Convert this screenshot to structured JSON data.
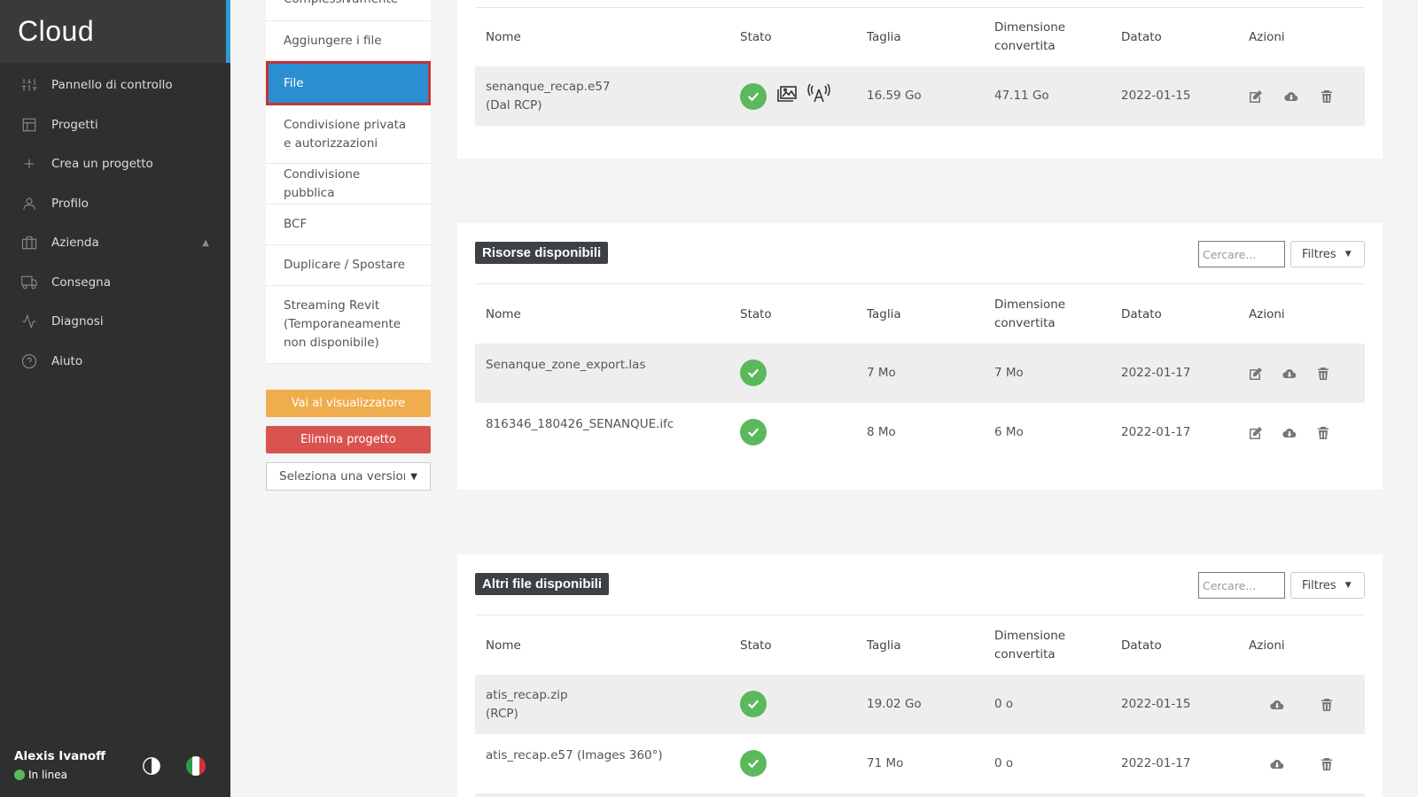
{
  "app": {
    "brand": "Cloud"
  },
  "sidebar": {
    "items": [
      {
        "label": "Pannello di controllo",
        "icon": "sliders-icon"
      },
      {
        "label": "Progetti",
        "icon": "layout-icon"
      },
      {
        "label": "Crea un progetto",
        "icon": "plus-icon"
      },
      {
        "label": "Profilo",
        "icon": "user-icon"
      },
      {
        "label": "Azienda",
        "icon": "briefcase-icon"
      },
      {
        "label": "Consegna",
        "icon": "truck-icon"
      },
      {
        "label": "Diagnosi",
        "icon": "activity-icon"
      },
      {
        "label": "Aiuto",
        "icon": "help-circle-icon"
      }
    ],
    "user": {
      "name": "Alexis Ivanoff",
      "status": "In linea",
      "status_color": "#5cb85c"
    }
  },
  "submenu": {
    "items": [
      {
        "label": "Complessivamente"
      },
      {
        "label": "Aggiungere i file"
      },
      {
        "label": "File",
        "active": true
      },
      {
        "label": "Condivisione privata e autorizzazioni"
      },
      {
        "label": "Condivisione pubblica"
      },
      {
        "label": "BCF"
      },
      {
        "label": "Duplicare / Spostare"
      },
      {
        "label": "Streaming Revit (Temporaneamente non disponibile)"
      }
    ],
    "viewer_button": "Vai al visualizzatore",
    "delete_button": "Elimina progetto",
    "version_select": "Seleziona una versione"
  },
  "table_headers": {
    "name": "Nome",
    "status": "Stato",
    "size": "Taglia",
    "converted": "Dimensione convertita",
    "date": "Datato",
    "actions": "Azioni"
  },
  "panels": {
    "files": {
      "rows": [
        {
          "name": "senanque_recap.e57",
          "sub": "(Dal RCP)",
          "size": "16.59 Go",
          "converted": "47.11 Go",
          "date": "2022-01-15"
        }
      ]
    },
    "resources": {
      "title": "Risorse disponibili",
      "search_placeholder": "Cercare...",
      "filter_label": "Filtres",
      "rows": [
        {
          "name": "Senanque_zone_export.las",
          "size": "7 Mo",
          "converted": "7 Mo",
          "date": "2022-01-17"
        },
        {
          "name": "816346_180426_SENANQUE.ifc",
          "size": "8 Mo",
          "converted": "6 Mo",
          "date": "2022-01-17"
        }
      ]
    },
    "others": {
      "title": "Altri file disponibili",
      "search_placeholder": "Cercare...",
      "filter_label": "Filtres",
      "rows": [
        {
          "name": "atis_recap.zip",
          "sub": "(RCP)",
          "size": "19.02 Go",
          "converted": "0 o",
          "date": "2022-01-15"
        },
        {
          "name": "atis_recap.e57 (Images 360°)",
          "size": "71 Mo",
          "converted": "0 o",
          "date": "2022-01-17"
        }
      ]
    }
  },
  "colors": {
    "accent": "#2a8fd1",
    "active_border": "#c43339",
    "warning": "#f0ad4e",
    "danger": "#d9534f",
    "success": "#5cb85c"
  }
}
